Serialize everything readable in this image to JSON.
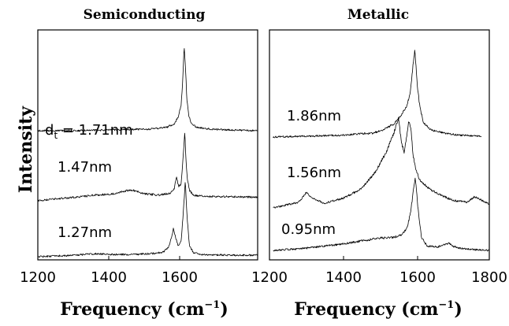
{
  "chart_data": {
    "type": "line",
    "ylabel": "Intensity",
    "panels": [
      {
        "title": "Semiconducting",
        "xlabel": "Frequency (cm",
        "xlabel_sup": "−1",
        "xlabel_close": ")",
        "xlim": [
          1200,
          1780
        ],
        "xticks": [
          "1200",
          "1400",
          "1600"
        ],
        "series": [
          {
            "label_prefix": "d",
            "label_sub": "t",
            "label": " = 1.71nm",
            "x": [
              1200,
              1300,
              1400,
              1500,
              1540,
              1560,
              1570,
              1575,
              1578,
              1582,
              1586,
              1590,
              1593,
              1598,
              1605,
              1620,
              1650,
              1700,
              1780
            ],
            "y": [
              0.0,
              0.0,
              0.01,
              0.02,
              0.04,
              0.08,
              0.16,
              0.25,
              0.3,
              0.55,
              0.98,
              0.7,
              0.38,
              0.18,
              0.08,
              0.04,
              0.02,
              0.01,
              0.0
            ]
          },
          {
            "label": "1.47nm",
            "x": [
              1200,
              1250,
              1300,
              1350,
              1400,
              1430,
              1450,
              1480,
              1520,
              1550,
              1560,
              1566,
              1572,
              1578,
              1583,
              1588,
              1591,
              1595,
              1600,
              1610,
              1640,
              1700,
              1780
            ],
            "y": [
              0.0,
              0.03,
              0.05,
              0.08,
              0.1,
              0.14,
              0.15,
              0.1,
              0.08,
              0.11,
              0.18,
              0.32,
              0.2,
              0.24,
              0.6,
              1.0,
              0.55,
              0.3,
              0.15,
              0.08,
              0.06,
              0.06,
              0.05
            ]
          },
          {
            "label": "1.27nm",
            "x": [
              1200,
              1300,
              1350,
              1400,
              1450,
              1500,
              1530,
              1545,
              1552,
              1558,
              1564,
              1570,
              1578,
              1584,
              1589,
              1594,
              1600,
              1610,
              1630,
              1700,
              1780
            ],
            "y": [
              0.0,
              0.02,
              0.04,
              0.03,
              0.03,
              0.04,
              0.06,
              0.12,
              0.25,
              0.38,
              0.25,
              0.15,
              0.2,
              0.6,
              1.0,
              0.5,
              0.15,
              0.06,
              0.03,
              0.02,
              0.02
            ]
          }
        ]
      },
      {
        "title": "Metallic",
        "xlabel": "Frequency (cm",
        "xlabel_sup": "−1",
        "xlabel_close": ")",
        "xlim": [
          1200,
          1800
        ],
        "xticks": [
          "1200",
          "1400",
          "1600",
          "1800"
        ],
        "series": [
          {
            "label": "1.86nm",
            "x": [
              1210,
              1300,
              1400,
              1450,
              1480,
              1510,
              1540,
              1560,
              1575,
              1585,
              1592,
              1597,
              1603,
              1610,
              1620,
              1640,
              1680,
              1720,
              1780
            ],
            "y": [
              0.0,
              0.01,
              0.02,
              0.04,
              0.04,
              0.08,
              0.15,
              0.25,
              0.35,
              0.52,
              0.82,
              0.98,
              0.6,
              0.35,
              0.16,
              0.08,
              0.04,
              0.02,
              0.01
            ]
          },
          {
            "label": "1.56nm",
            "x": [
              1210,
              1280,
              1300,
              1320,
              1350,
              1400,
              1450,
              1490,
              1520,
              1540,
              1552,
              1560,
              1568,
              1575,
              1580,
              1586,
              1592,
              1600,
              1610,
              1630,
              1660,
              1700,
              1740,
              1760,
              1800
            ],
            "y": [
              0.0,
              0.06,
              0.16,
              0.1,
              0.05,
              0.1,
              0.2,
              0.38,
              0.6,
              0.8,
              0.95,
              0.7,
              0.58,
              0.78,
              0.92,
              0.85,
              0.55,
              0.4,
              0.3,
              0.22,
              0.15,
              0.08,
              0.06,
              0.12,
              0.04
            ]
          },
          {
            "label": "0.95nm",
            "x": [
              1210,
              1300,
              1350,
              1400,
              1450,
              1500,
              1540,
              1560,
              1575,
              1585,
              1592,
              1598,
              1606,
              1615,
              1630,
              1660,
              1690,
              1700,
              1720,
              1760,
              1800
            ],
            "y": [
              0.0,
              0.03,
              0.06,
              0.09,
              0.13,
              0.17,
              0.18,
              0.22,
              0.3,
              0.52,
              0.8,
              1.0,
              0.55,
              0.18,
              0.06,
              0.05,
              0.1,
              0.06,
              0.03,
              0.01,
              0.0
            ]
          }
        ]
      }
    ]
  }
}
